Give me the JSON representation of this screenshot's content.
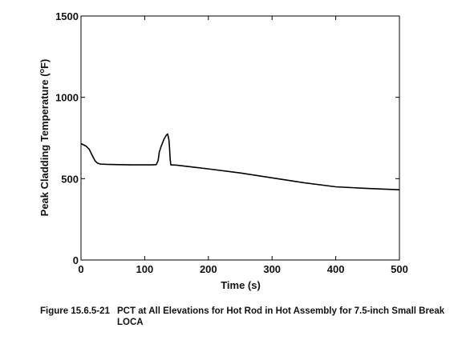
{
  "chart_data": {
    "type": "line",
    "title": "",
    "xlabel": "Time (s)",
    "ylabel_main": "Peak Cladding Temperature (",
    "ylabel_sup": "o",
    "ylabel_end": "F)",
    "xlim": [
      0,
      500
    ],
    "ylim": [
      0,
      1500
    ],
    "xticks": [
      0,
      100,
      200,
      300,
      400,
      500
    ],
    "yticks": [
      0,
      500,
      1000,
      1500
    ],
    "grid": false,
    "series": [
      {
        "color": "#000000",
        "x": [
          0,
          3,
          8,
          13,
          18,
          22,
          26,
          30,
          40,
          60,
          80,
          100,
          110,
          118,
          121,
          123,
          126,
          130,
          134,
          136,
          138,
          139,
          140,
          141,
          150,
          200,
          250,
          300,
          350,
          400,
          450,
          500
        ],
        "y": [
          715,
          710,
          700,
          680,
          640,
          610,
          595,
          590,
          588,
          586,
          585,
          585,
          585,
          586,
          610,
          665,
          700,
          740,
          768,
          775,
          740,
          690,
          620,
          585,
          583,
          560,
          535,
          505,
          475,
          450,
          440,
          432
        ]
      }
    ]
  },
  "caption": {
    "number": "Figure 15.6.5-21",
    "text": "PCT at All Elevations for Hot Rod in Hot Assembly for 7.5-inch Small Break LOCA"
  }
}
